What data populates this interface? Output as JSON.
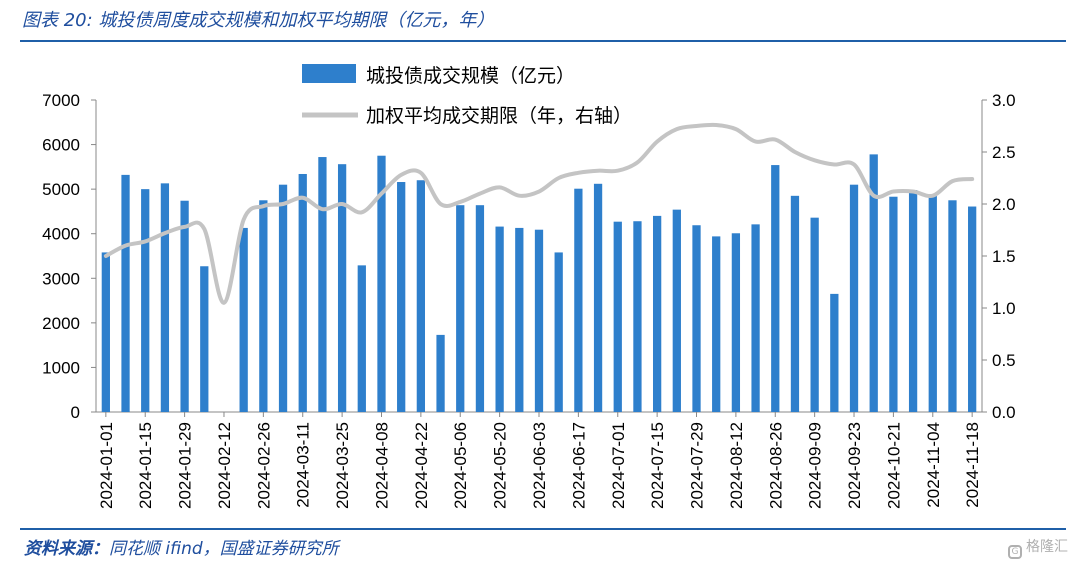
{
  "figure": {
    "title": "图表 20:  城投债周度成交规模和加权平均期限（亿元，年）",
    "source_label": "资料来源：",
    "source_text": "同花顺 ifind，国盛证券研究所",
    "watermark": "格隆汇"
  },
  "chart_data": {
    "type": "bar+line",
    "legend_position": "top-center",
    "left_axis": {
      "ylim": [
        0,
        7000
      ],
      "ticks": [
        "0",
        "1000",
        "2000",
        "3000",
        "4000",
        "5000",
        "6000",
        "7000"
      ]
    },
    "right_axis": {
      "ylim": [
        0,
        3.0
      ],
      "ticks": [
        "0.0",
        "0.5",
        "1.0",
        "1.5",
        "2.0",
        "2.5",
        "3.0"
      ]
    },
    "x_tick_labels": [
      "2024-01-01",
      "2024-01-15",
      "2024-01-29",
      "2024-02-12",
      "2024-02-26",
      "2024-03-11",
      "2024-03-25",
      "2024-04-08",
      "2024-04-22",
      "2024-05-06",
      "2024-05-20",
      "2024-06-03",
      "2024-06-17",
      "2024-07-01",
      "2024-07-15",
      "2024-07-29",
      "2024-08-12",
      "2024-08-26",
      "2024-09-09",
      "2024-09-23",
      "2024-10-21",
      "2024-11-04",
      "2024-11-18"
    ],
    "tick_week_index": [
      0,
      2,
      4,
      6,
      8,
      10,
      12,
      14,
      16,
      18,
      20,
      22,
      24,
      26,
      28,
      30,
      32,
      34,
      36,
      38,
      40,
      42,
      44
    ],
    "weeks": 45,
    "series": [
      {
        "name": "城投债成交规模（亿元）",
        "type": "bar",
        "axis": "left",
        "color": "#2e7fcc",
        "values": [
          3580,
          5320,
          5000,
          5130,
          4740,
          3270,
          0,
          4130,
          4750,
          5100,
          5340,
          5720,
          5560,
          3290,
          5750,
          5160,
          5200,
          1730,
          4640,
          4640,
          4160,
          4130,
          4090,
          3580,
          5010,
          5120,
          4270,
          4280,
          4400,
          4540,
          4190,
          3940,
          4010,
          4210,
          5540,
          4850,
          4360,
          2650,
          5100,
          5780,
          4830,
          4980,
          4880,
          4750,
          4610
        ]
      },
      {
        "name": "加权平均成交期限（年，右轴）",
        "type": "line",
        "axis": "right",
        "color": "#c4c4c4",
        "values": [
          1.5,
          1.6,
          1.64,
          1.72,
          1.78,
          1.76,
          1.05,
          1.85,
          1.98,
          2.0,
          2.06,
          1.95,
          2.0,
          1.92,
          2.1,
          2.28,
          2.3,
          2.0,
          2.02,
          2.1,
          2.16,
          2.08,
          2.12,
          2.25,
          2.3,
          2.32,
          2.32,
          2.4,
          2.6,
          2.72,
          2.75,
          2.76,
          2.72,
          2.6,
          2.62,
          2.5,
          2.42,
          2.38,
          2.38,
          2.08,
          2.12,
          2.12,
          2.08,
          2.22,
          2.24
        ]
      }
    ]
  }
}
